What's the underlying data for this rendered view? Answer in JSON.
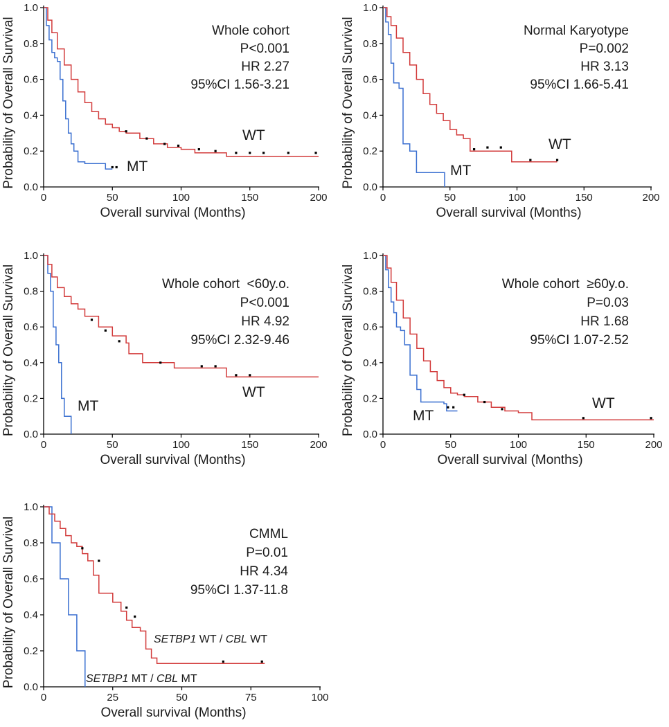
{
  "colors": {
    "mt": "#3a6fd0",
    "wt": "#d23a3a",
    "censor": "#000000",
    "text": "#1a1a1a"
  },
  "chart_data": [
    {
      "type": "line",
      "title": "Whole cohort",
      "annotations": [
        "Whole cohort",
        "P<0.001",
        "HR 2.27",
        "95%CI 1.56-3.21"
      ],
      "xlabel": "Overall survival (Months)",
      "ylabel": "Probability of Overall Survival",
      "xlim": [
        0,
        200
      ],
      "ylim": [
        0,
        1
      ],
      "xticks": [
        "0",
        "50",
        "100",
        "150",
        "200"
      ],
      "yticks": [
        "0.0",
        "0.2",
        "0.4",
        "0.6",
        "0.8",
        "1.0"
      ],
      "series": [
        {
          "name": "MT",
          "label": "MT",
          "color_key": "mt",
          "x": [
            0,
            2,
            4,
            6,
            8,
            10,
            12,
            14,
            16,
            18,
            20,
            22,
            25,
            30,
            45,
            50
          ],
          "y": [
            1.0,
            0.9,
            0.82,
            0.75,
            0.72,
            0.7,
            0.6,
            0.48,
            0.38,
            0.3,
            0.24,
            0.2,
            0.14,
            0.13,
            0.1,
            0.1
          ],
          "censored": [
            [
              50,
              0.11
            ],
            [
              53,
              0.11
            ]
          ]
        },
        {
          "name": "WT",
          "label": "WT",
          "color_key": "wt",
          "x": [
            0,
            3,
            6,
            10,
            15,
            20,
            25,
            30,
            35,
            40,
            45,
            50,
            55,
            60,
            70,
            80,
            90,
            100,
            110,
            130,
            133,
            200
          ],
          "y": [
            1.0,
            0.93,
            0.86,
            0.77,
            0.68,
            0.6,
            0.53,
            0.47,
            0.42,
            0.38,
            0.35,
            0.33,
            0.31,
            0.3,
            0.27,
            0.24,
            0.22,
            0.21,
            0.19,
            0.19,
            0.17,
            0.17
          ],
          "censored": [
            [
              60,
              0.31
            ],
            [
              75,
              0.27
            ],
            [
              88,
              0.24
            ],
            [
              98,
              0.23
            ],
            [
              113,
              0.21
            ],
            [
              125,
              0.2
            ],
            [
              140,
              0.19
            ],
            [
              150,
              0.19
            ],
            [
              160,
              0.19
            ],
            [
              178,
              0.19
            ],
            [
              198,
              0.19
            ]
          ]
        }
      ]
    },
    {
      "type": "line",
      "title": "Normal Karyotype",
      "annotations": [
        "Normal Karyotype",
        "P=0.002",
        "HR 3.13",
        "95%CI 1.66-5.41"
      ],
      "xlabel": "Overall survival (Months)",
      "ylabel": "Probability of Overall Survival",
      "xlim": [
        0,
        200
      ],
      "ylim": [
        0,
        1
      ],
      "xticks": [
        "0",
        "50",
        "100",
        "150",
        "200"
      ],
      "yticks": [
        "0.0",
        "0.2",
        "0.4",
        "0.6",
        "0.8",
        "1.0"
      ],
      "series": [
        {
          "name": "MT",
          "label": "MT",
          "color_key": "mt",
          "x": [
            0,
            2,
            4,
            6,
            8,
            12,
            15,
            20,
            25,
            45,
            46
          ],
          "y": [
            1.0,
            0.92,
            0.85,
            0.69,
            0.58,
            0.55,
            0.24,
            0.2,
            0.08,
            0.08,
            0.0
          ],
          "censored": []
        },
        {
          "name": "WT",
          "label": "WT",
          "color_key": "wt",
          "x": [
            0,
            3,
            6,
            10,
            15,
            20,
            25,
            30,
            35,
            40,
            45,
            50,
            55,
            60,
            65,
            95,
            96,
            130
          ],
          "y": [
            1.0,
            0.95,
            0.9,
            0.83,
            0.75,
            0.68,
            0.6,
            0.52,
            0.46,
            0.41,
            0.37,
            0.32,
            0.29,
            0.27,
            0.2,
            0.2,
            0.14,
            0.14
          ],
          "censored": [
            [
              68,
              0.21
            ],
            [
              78,
              0.22
            ],
            [
              88,
              0.22
            ],
            [
              110,
              0.15
            ],
            [
              130,
              0.15
            ]
          ]
        }
      ]
    },
    {
      "type": "line",
      "title": "Whole cohort <60y.o.",
      "annotations": [
        "Whole cohort  <60y.o.",
        "P<0.001",
        "HR 4.92",
        "95%CI 2.32-9.46"
      ],
      "xlabel": "Overall survival (Months)",
      "ylabel": "Probability of Overall Survival",
      "xlim": [
        0,
        200
      ],
      "ylim": [
        0,
        1
      ],
      "xticks": [
        "0",
        "50",
        "100",
        "150",
        "200"
      ],
      "yticks": [
        "0.0",
        "0.2",
        "0.4",
        "0.6",
        "0.8",
        "1.0"
      ],
      "series": [
        {
          "name": "MT",
          "label": "MT",
          "color_key": "mt",
          "x": [
            0,
            3,
            5,
            7,
            9,
            11,
            13,
            15,
            17,
            20
          ],
          "y": [
            1.0,
            0.9,
            0.8,
            0.6,
            0.5,
            0.4,
            0.2,
            0.1,
            0.1,
            0.0
          ],
          "censored": []
        },
        {
          "name": "WT",
          "label": "WT",
          "color_key": "wt",
          "x": [
            0,
            3,
            6,
            10,
            15,
            20,
            25,
            30,
            40,
            50,
            60,
            62,
            72,
            95,
            110,
            133,
            200
          ],
          "y": [
            1.0,
            0.95,
            0.88,
            0.82,
            0.77,
            0.73,
            0.7,
            0.66,
            0.6,
            0.55,
            0.51,
            0.45,
            0.4,
            0.37,
            0.37,
            0.32,
            0.32
          ],
          "censored": [
            [
              35,
              0.64
            ],
            [
              45,
              0.58
            ],
            [
              55,
              0.52
            ],
            [
              85,
              0.4
            ],
            [
              115,
              0.38
            ],
            [
              125,
              0.38
            ],
            [
              140,
              0.33
            ],
            [
              150,
              0.33
            ]
          ]
        }
      ]
    },
    {
      "type": "line",
      "title": "Whole cohort ≥60y.o.",
      "annotations": [
        "Whole cohort  ≥60y.o.",
        "P=0.03",
        "HR 1.68",
        "95%CI 1.07-2.52"
      ],
      "xlabel": "Overall survival (Months)",
      "ylabel": "Probability of Overall Survival",
      "xlim": [
        0,
        200
      ],
      "ylim": [
        0,
        1
      ],
      "xticks": [
        "0",
        "50",
        "100",
        "150",
        "200"
      ],
      "yticks": [
        "0.0",
        "0.2",
        "0.4",
        "0.6",
        "0.8",
        "1.0"
      ],
      "series": [
        {
          "name": "MT",
          "label": "MT",
          "color_key": "mt",
          "x": [
            0,
            2,
            4,
            6,
            8,
            10,
            13,
            16,
            20,
            25,
            28,
            45,
            47,
            55
          ],
          "y": [
            1.0,
            0.92,
            0.82,
            0.74,
            0.68,
            0.6,
            0.58,
            0.5,
            0.33,
            0.25,
            0.18,
            0.17,
            0.13,
            0.13
          ],
          "censored": [
            [
              48,
              0.15
            ],
            [
              52,
              0.15
            ]
          ]
        },
        {
          "name": "WT",
          "label": "WT",
          "color_key": "wt",
          "x": [
            0,
            3,
            6,
            10,
            15,
            20,
            25,
            30,
            35,
            40,
            45,
            50,
            55,
            60,
            70,
            80,
            90,
            100,
            108,
            110,
            200
          ],
          "y": [
            1.0,
            0.93,
            0.85,
            0.75,
            0.65,
            0.56,
            0.48,
            0.41,
            0.35,
            0.3,
            0.26,
            0.23,
            0.22,
            0.21,
            0.18,
            0.15,
            0.13,
            0.12,
            0.12,
            0.08,
            0.08
          ],
          "censored": [
            [
              60,
              0.22
            ],
            [
              75,
              0.18
            ],
            [
              88,
              0.14
            ],
            [
              148,
              0.09
            ],
            [
              198,
              0.09
            ]
          ]
        }
      ]
    },
    {
      "type": "line",
      "title": "CMML",
      "annotations": [
        "CMML",
        "P=0.01",
        "HR 4.34",
        "95%CI 1.37-11.8"
      ],
      "xlabel": "Overall survival (Months)",
      "ylabel": "Probability of Overall Survival",
      "xlim": [
        0,
        100
      ],
      "ylim": [
        0,
        1
      ],
      "xticks": [
        "0",
        "25",
        "50",
        "75",
        "100"
      ],
      "yticks": [
        "0.0",
        "0.2",
        "0.4",
        "0.6",
        "0.8",
        "1.0"
      ],
      "series": [
        {
          "name": "SETBP1 MT / CBL MT",
          "label_italic_1": "SETBP1",
          "label_rest_1": " MT / ",
          "label_italic_2": "CBL",
          "label_rest_2": " MT",
          "color_key": "mt",
          "x": [
            0,
            3,
            6,
            9,
            12,
            15
          ],
          "y": [
            1.0,
            0.8,
            0.6,
            0.4,
            0.2,
            0.0
          ],
          "censored": []
        },
        {
          "name": "SETBP1 WT / CBL WT",
          "label_italic_1": "SETBP1",
          "label_rest_1": " WT / ",
          "label_italic_2": "CBL",
          "label_rest_2": " WT",
          "color_key": "wt",
          "x": [
            0,
            2,
            4,
            6,
            8,
            10,
            12,
            14,
            16,
            18,
            20,
            25,
            28,
            30,
            32,
            35,
            37,
            39,
            41,
            80
          ],
          "y": [
            1.0,
            0.96,
            0.92,
            0.88,
            0.84,
            0.8,
            0.78,
            0.74,
            0.7,
            0.62,
            0.52,
            0.47,
            0.42,
            0.37,
            0.33,
            0.31,
            0.21,
            0.16,
            0.13,
            0.13
          ],
          "censored": [
            [
              14,
              0.77
            ],
            [
              20,
              0.7
            ],
            [
              30,
              0.44
            ],
            [
              33,
              0.39
            ],
            [
              65,
              0.14
            ],
            [
              79,
              0.14
            ]
          ]
        }
      ]
    }
  ]
}
